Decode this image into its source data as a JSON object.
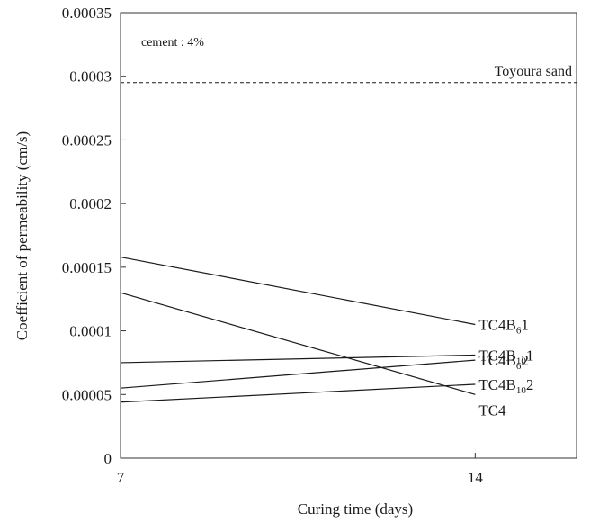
{
  "chart_data": {
    "type": "line",
    "xlabel": "Curing time (days)",
    "ylabel": "Coefficient of permeability (cm/s)",
    "x": [
      7,
      14
    ],
    "xlim": [
      7,
      16
    ],
    "ylim": [
      0,
      0.00035
    ],
    "x_ticks": [
      "7",
      "14"
    ],
    "y_ticks": [
      "0",
      "0.00005",
      "0.0001",
      "0.00015",
      "0.0002",
      "0.00025",
      "0.0003",
      "0.00035"
    ],
    "grid": false,
    "annotation": "cement : 4%",
    "reference_line": {
      "label": "Toyoura sand",
      "value": 0.000295,
      "style": "dashed"
    },
    "series": [
      {
        "label_main": "TC4B",
        "label_sub": "6",
        "label_tail": "1",
        "values": [
          0.000158,
          0.000105
        ]
      },
      {
        "label_main": "TC4B",
        "label_sub": "10",
        "label_tail": "1",
        "values": [
          7.5e-05,
          8.1e-05
        ]
      },
      {
        "label_main": "TC4B",
        "label_sub": "6",
        "label_tail": "2",
        "values": [
          5.5e-05,
          7.7e-05
        ]
      },
      {
        "label_main": "TC4B",
        "label_sub": "10",
        "label_tail": "2",
        "values": [
          4.4e-05,
          5.8e-05
        ]
      },
      {
        "label_main": "TC4",
        "label_sub": "",
        "label_tail": "",
        "values": [
          0.00013,
          5e-05
        ]
      }
    ],
    "colors": {
      "line": "#1a1a1a",
      "axis": "#333333",
      "background": "#ffffff"
    }
  }
}
